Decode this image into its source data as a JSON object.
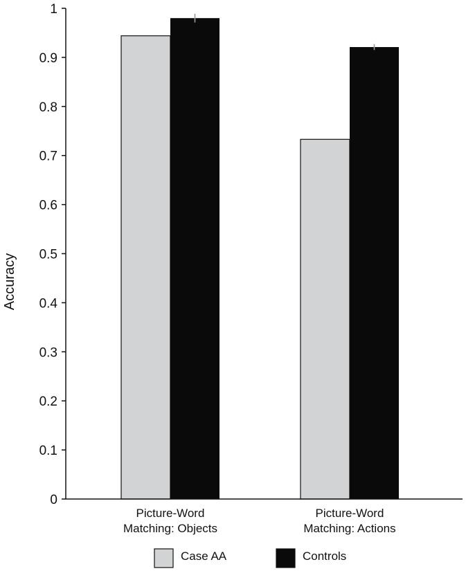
{
  "chart_data": {
    "type": "bar",
    "title": "",
    "xlabel": "",
    "ylabel": "Accuracy",
    "ylim": [
      0,
      1
    ],
    "yticks": [
      "0",
      "0.1",
      "0.2",
      "0.3",
      "0.4",
      "0.5",
      "0.6",
      "0.7",
      "0.8",
      "0.9",
      "1"
    ],
    "categories": [
      [
        "Picture-Word",
        "Matching: Objects"
      ],
      [
        "Picture-Word",
        "Matching: Actions"
      ]
    ],
    "series": [
      {
        "name": "Case AA",
        "values": [
          0.944,
          0.733
        ],
        "color": "#d1d3d4",
        "error": [
          0,
          0
        ]
      },
      {
        "name": "Controls",
        "values": [
          0.98,
          0.921
        ],
        "color": "#0a0a0a",
        "error": [
          0.009,
          0.006
        ]
      }
    ],
    "grid": false,
    "legend_position": "bottom"
  }
}
